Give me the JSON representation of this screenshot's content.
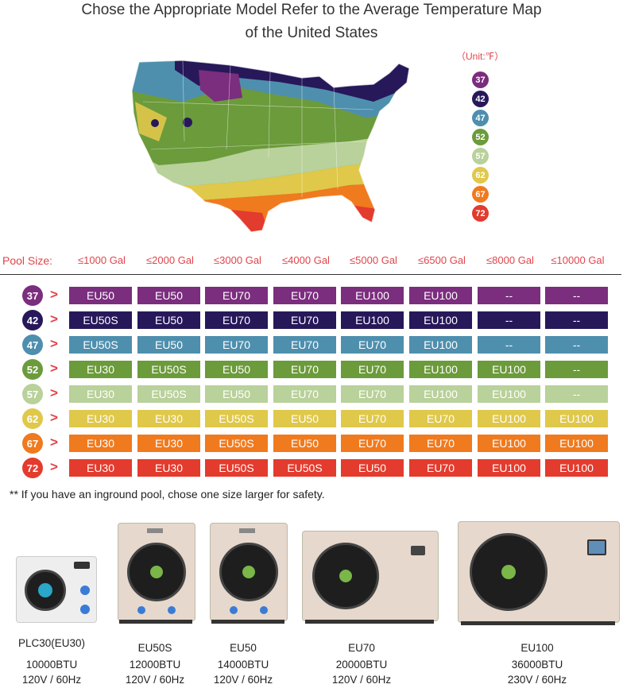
{
  "title_line1": "Chose the Appropriate Model Refer to the Average Temperature Map",
  "title_line2": "of the United States",
  "legend": {
    "unit": "（Unit:℉）",
    "items": [
      {
        "value": "37",
        "color": "#7b2d7e"
      },
      {
        "value": "42",
        "color": "#27185a"
      },
      {
        "value": "47",
        "color": "#4e8fae"
      },
      {
        "value": "52",
        "color": "#6b9b3b"
      },
      {
        "value": "57",
        "color": "#b9d19a"
      },
      {
        "value": "62",
        "color": "#e0c84a"
      },
      {
        "value": "67",
        "color": "#f07a1e"
      },
      {
        "value": "72",
        "color": "#e33b2e"
      }
    ]
  },
  "pool_size_label": "Pool Size:",
  "sizes": [
    "≤1000 Gal",
    "≤2000 Gal",
    "≤3000 Gal",
    "≤4000 Gal",
    "≤5000 Gal",
    "≤6500 Gal",
    "≤8000 Gal",
    "≤10000 Gal"
  ],
  "rows": [
    {
      "temp": "37",
      "color": "#7b2d7e",
      "cells": [
        "EU50",
        "EU50",
        "EU70",
        "EU70",
        "EU100",
        "EU100",
        "--",
        "--"
      ]
    },
    {
      "temp": "42",
      "color": "#27185a",
      "cells": [
        "EU50S",
        "EU50",
        "EU70",
        "EU70",
        "EU100",
        "EU100",
        "--",
        "--"
      ]
    },
    {
      "temp": "47",
      "color": "#4e8fae",
      "cells": [
        "EU50S",
        "EU50",
        "EU70",
        "EU70",
        "EU70",
        "EU100",
        "--",
        "--"
      ]
    },
    {
      "temp": "52",
      "color": "#6b9b3b",
      "cells": [
        "EU30",
        "EU50S",
        "EU50",
        "EU70",
        "EU70",
        "EU100",
        "EU100",
        "--"
      ]
    },
    {
      "temp": "57",
      "color": "#b9d19a",
      "cells": [
        "EU30",
        "EU50S",
        "EU50",
        "EU70",
        "EU70",
        "EU100",
        "EU100",
        "--"
      ]
    },
    {
      "temp": "62",
      "color": "#e0c84a",
      "cells": [
        "EU30",
        "EU30",
        "EU50S",
        "EU50",
        "EU70",
        "EU70",
        "EU100",
        "EU100"
      ]
    },
    {
      "temp": "67",
      "color": "#f07a1e",
      "cells": [
        "EU30",
        "EU30",
        "EU50S",
        "EU50",
        "EU70",
        "EU70",
        "EU100",
        "EU100"
      ]
    },
    {
      "temp": "72",
      "color": "#e33b2e",
      "cells": [
        "EU30",
        "EU30",
        "EU50S",
        "EU50S",
        "EU50",
        "EU70",
        "EU100",
        "EU100"
      ]
    }
  ],
  "row_arrow": ">",
  "note": "** If you have an inground pool, chose one size larger for safety.",
  "products": [
    {
      "name": "PLC30(EU30)",
      "btu": "10000BTU",
      "power": "120V / 60Hz"
    },
    {
      "name": "EU50S",
      "btu": "12000BTU",
      "power": "120V / 60Hz"
    },
    {
      "name": "EU50",
      "btu": "14000BTU",
      "power": "120V / 60Hz"
    },
    {
      "name": "EU70",
      "btu": "20000BTU",
      "power": "120V / 60Hz"
    },
    {
      "name": "EU100",
      "btu": "36000BTU",
      "power": "230V / 60Hz"
    }
  ]
}
